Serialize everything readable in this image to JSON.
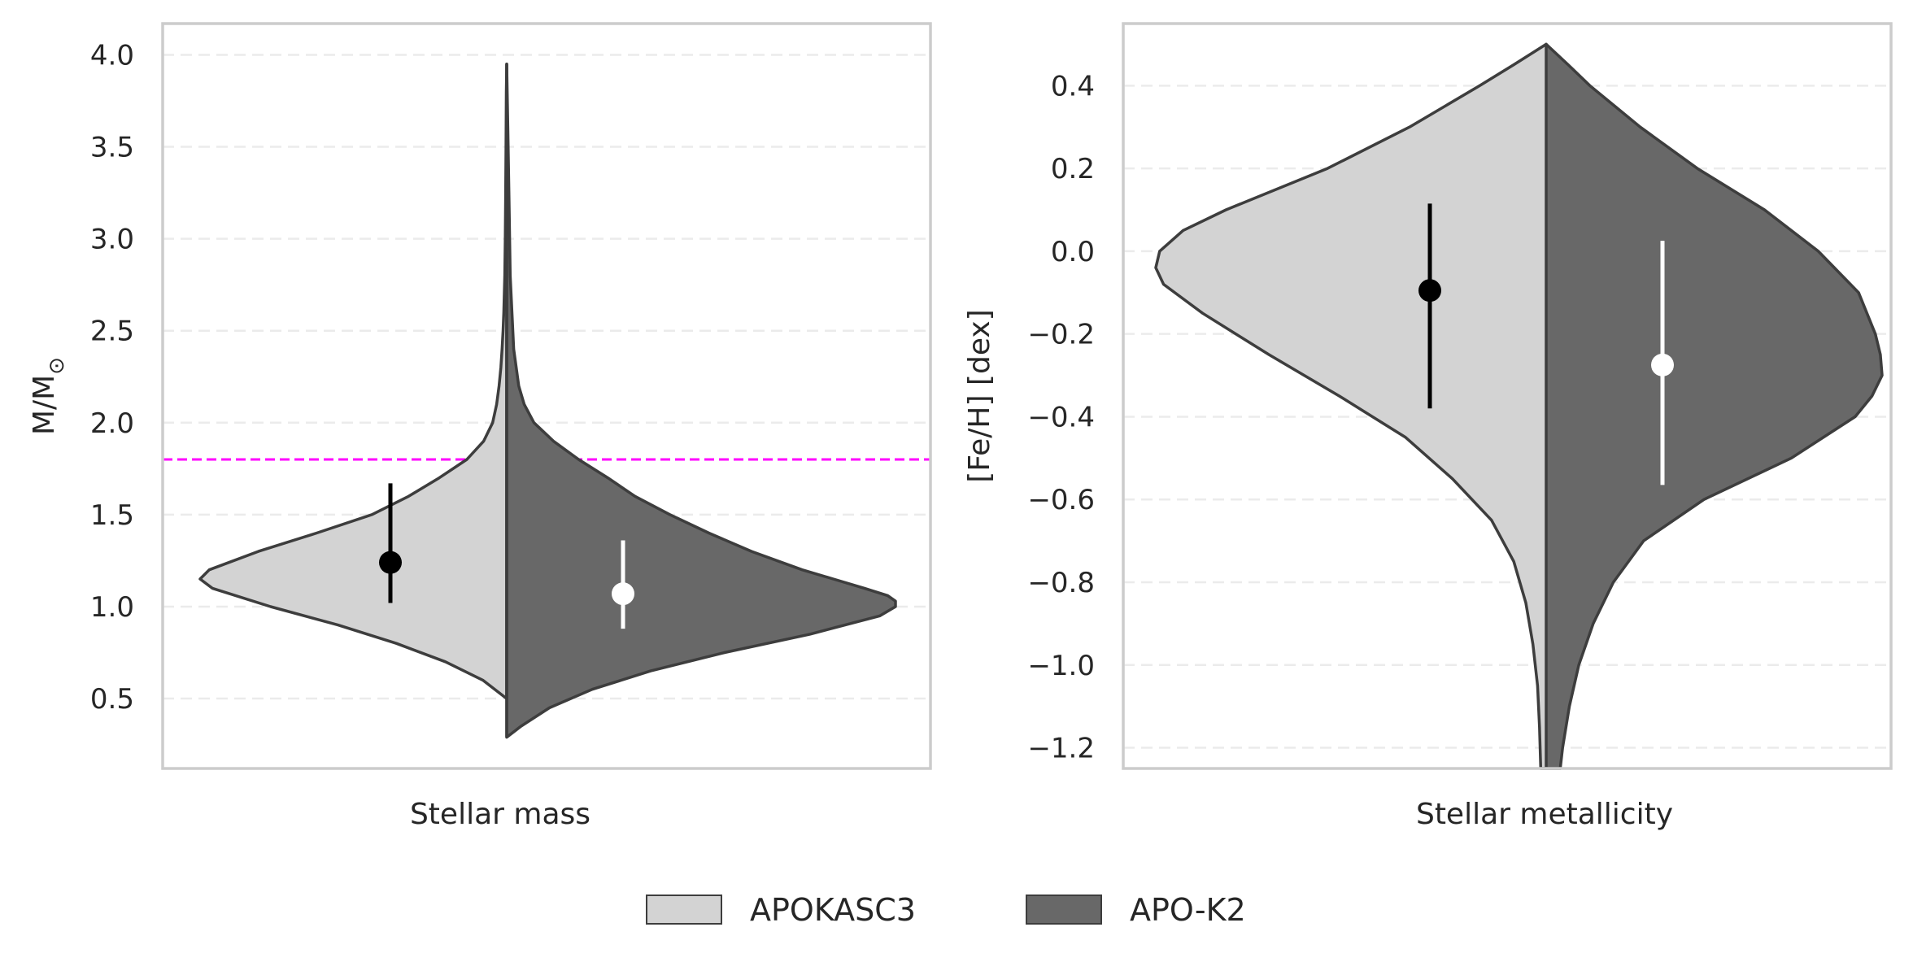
{
  "chart_data": [
    {
      "type": "violin",
      "panel": "left",
      "xlabel": "Stellar mass",
      "ylabel": "M/M",
      "ylabel_sub": "⊙",
      "ylim": [
        0.12,
        4.17
      ],
      "yticks": [
        "0.5",
        "1.0",
        "1.5",
        "2.0",
        "2.5",
        "3.0",
        "3.5",
        "4.0"
      ],
      "ytick_values": [
        0.5,
        1.0,
        1.5,
        2.0,
        2.5,
        3.0,
        3.5,
        4.0
      ],
      "reference_line": {
        "y": 1.8,
        "color": "#ff00ff",
        "style": "dashed"
      },
      "series": [
        {
          "name": "APOKASC3",
          "side": "left",
          "color": "#d3d3d3",
          "profile_y": [
            0.5,
            0.6,
            0.7,
            0.8,
            0.9,
            1.0,
            1.1,
            1.15,
            1.2,
            1.3,
            1.4,
            1.5,
            1.6,
            1.7,
            1.8,
            1.9,
            2.0,
            2.1,
            2.2,
            2.3,
            2.4,
            2.5,
            2.6,
            2.8,
            3.0,
            3.2,
            3.5,
            3.8,
            3.95
          ],
          "profile_density": [
            0.0,
            0.078,
            0.2,
            0.36,
            0.55,
            0.77,
            0.96,
            1.0,
            0.97,
            0.81,
            0.62,
            0.44,
            0.32,
            0.22,
            0.13,
            0.075,
            0.046,
            0.033,
            0.025,
            0.019,
            0.015,
            0.012,
            0.0095,
            0.0064,
            0.0048,
            0.0036,
            0.0024,
            0.0012,
            0.0
          ],
          "median": 1.24,
          "interval": [
            1.02,
            1.67
          ],
          "marker_color": "#000000"
        },
        {
          "name": "APO-K2",
          "side": "right",
          "color": "#686868",
          "profile_y": [
            0.29,
            0.35,
            0.45,
            0.55,
            0.65,
            0.75,
            0.85,
            0.95,
            1.0,
            1.03,
            1.06,
            1.1,
            1.15,
            1.2,
            1.3,
            1.4,
            1.5,
            1.6,
            1.7,
            1.8,
            1.9,
            2.0,
            2.1,
            2.2,
            2.4,
            2.8,
            3.2,
            3.6,
            3.95
          ],
          "profile_density": [
            0.0,
            0.037,
            0.11,
            0.22,
            0.37,
            0.56,
            0.78,
            0.96,
            1.0,
            1.0,
            0.98,
            0.92,
            0.84,
            0.76,
            0.63,
            0.52,
            0.42,
            0.33,
            0.26,
            0.185,
            0.12,
            0.07,
            0.045,
            0.031,
            0.018,
            0.009,
            0.006,
            0.003,
            0.0
          ],
          "median": 1.07,
          "interval": [
            0.88,
            1.36
          ],
          "marker_color": "#ffffff"
        }
      ]
    },
    {
      "type": "violin",
      "panel": "right",
      "xlabel": "Stellar metallicity",
      "ylabel": "[Fe/H] [dex]",
      "ylim": [
        -1.25,
        0.55
      ],
      "yticks": [
        "0.4",
        "0.2",
        "0.0",
        "−0.2",
        "−0.4",
        "−0.6",
        "−0.8",
        "−1.0",
        "−1.2"
      ],
      "ytick_values": [
        0.4,
        0.2,
        0.0,
        -0.2,
        -0.4,
        -0.6,
        -0.8,
        -1.0,
        -1.2
      ],
      "series": [
        {
          "name": "APOKASC3",
          "side": "left",
          "color": "#d3d3d3",
          "profile_y": [
            0.5,
            0.45,
            0.4,
            0.3,
            0.2,
            0.1,
            0.05,
            0.0,
            -0.04,
            -0.08,
            -0.15,
            -0.25,
            -0.35,
            -0.45,
            -0.55,
            -0.65,
            -0.75,
            -0.85,
            -0.95,
            -1.05,
            -1.15,
            -1.25
          ],
          "profile_density": [
            0.0,
            0.084,
            0.17,
            0.35,
            0.56,
            0.82,
            0.93,
            0.99,
            1.0,
            0.98,
            0.88,
            0.71,
            0.53,
            0.36,
            0.24,
            0.14,
            0.083,
            0.052,
            0.034,
            0.022,
            0.017,
            0.014
          ],
          "median": -0.095,
          "interval": [
            -0.38,
            0.115
          ],
          "marker_color": "#000000"
        },
        {
          "name": "APO-K2",
          "side": "right",
          "color": "#686868",
          "profile_y": [
            0.5,
            0.45,
            0.4,
            0.3,
            0.2,
            0.1,
            0.0,
            -0.1,
            -0.2,
            -0.25,
            -0.3,
            -0.35,
            -0.4,
            -0.5,
            -0.6,
            -0.7,
            -0.8,
            -0.9,
            -1.0,
            -1.1,
            -1.2,
            -1.25
          ],
          "profile_density": [
            0.0,
            0.066,
            0.13,
            0.28,
            0.45,
            0.65,
            0.81,
            0.93,
            0.98,
            0.995,
            1.0,
            0.97,
            0.92,
            0.73,
            0.47,
            0.29,
            0.2,
            0.14,
            0.097,
            0.069,
            0.049,
            0.042
          ],
          "median": -0.275,
          "interval": [
            -0.565,
            0.025
          ],
          "marker_color": "#ffffff"
        }
      ]
    }
  ],
  "legend": {
    "placement": "bottom-center",
    "entries": [
      {
        "label": "APOKASC3",
        "color": "#d3d3d3"
      },
      {
        "label": "APO-K2",
        "color": "#686868"
      }
    ]
  }
}
